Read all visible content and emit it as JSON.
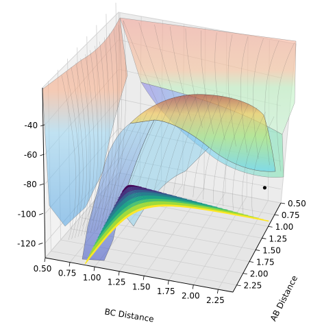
{
  "chart_data": {
    "type": "surface3d",
    "title": "",
    "xlabel": "AB Distance",
    "ylabel": "BC Distance",
    "zlabel": "",
    "x_ticks": [
      "0.50",
      "0.75",
      "1.00",
      "1.25",
      "1.50",
      "1.75",
      "2.00",
      "2.25"
    ],
    "y_ticks": [
      "0.50",
      "0.75",
      "1.00",
      "1.25",
      "1.50",
      "1.75",
      "2.00",
      "2.25"
    ],
    "z_ticks": [
      "-40",
      "-60",
      "-80",
      "-100",
      "-120"
    ],
    "xlim": [
      0.5,
      2.4
    ],
    "ylim": [
      0.5,
      2.4
    ],
    "zlim": [
      -130,
      -15
    ],
    "colormap_surface": "jet",
    "colormap_contour": "viridis",
    "contour_projection": "bottom",
    "grid": true,
    "marked_point": {
      "x": 0.74,
      "y": 2.3,
      "z": -70
    }
  },
  "colors": {
    "pane": "#f2f2f2",
    "pane_edge": "#d0d0d0",
    "grid": "#cfcfcf",
    "marker": "#000000"
  }
}
